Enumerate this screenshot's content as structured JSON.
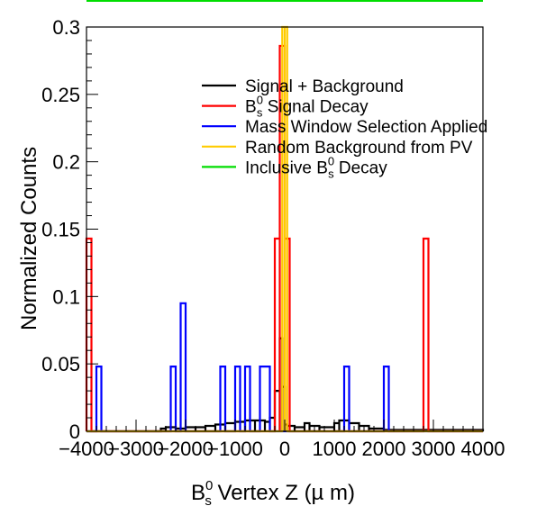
{
  "chart_data": {
    "type": "histogram-step",
    "xlabel": "B_s^0 Vertex Z (μ m)",
    "xlabel_parts": {
      "main": "B",
      "sub": "s",
      "sup": "0",
      "rest": " Vertex Z (µ m)"
    },
    "ylabel": "Normalized Counts",
    "xlim": [
      -4000,
      4000
    ],
    "ylim": [
      0,
      0.3
    ],
    "bin_width": 100,
    "x_ticks": [
      -4000,
      -3000,
      -2000,
      -1000,
      0,
      1000,
      2000,
      3000,
      4000
    ],
    "x_tick_labels": [
      "−4000",
      "−3000",
      "−2000",
      "−1000",
      "0",
      "1000",
      "2000",
      "3000",
      "4000"
    ],
    "y_ticks": [
      0,
      0.05,
      0.1,
      0.15,
      0.2,
      0.25,
      0.3
    ],
    "y_tick_labels": [
      "0",
      "0.05",
      "0.1",
      "0.15",
      "0.2",
      "0.25",
      "0.3"
    ],
    "legend_position": "top-right",
    "series": [
      {
        "name": "Signal + Background",
        "legend": {
          "pre": "Signal + Background",
          "sub": "",
          "sup": "",
          "post": ""
        },
        "color": "#000000",
        "bins": [
          [
            -2500,
            -2400,
            0.002
          ],
          [
            -2400,
            -2200,
            0.003
          ],
          [
            -2200,
            -2000,
            0.002
          ],
          [
            -2000,
            -1800,
            0.003
          ],
          [
            -1800,
            -1600,
            0.003
          ],
          [
            -1600,
            -1400,
            0.004
          ],
          [
            -1400,
            -1200,
            0.005
          ],
          [
            -1200,
            -1000,
            0.006
          ],
          [
            -1000,
            -800,
            0.007
          ],
          [
            -800,
            -600,
            0.008
          ],
          [
            -600,
            -400,
            0.008
          ],
          [
            -400,
            -300,
            0.007
          ],
          [
            -300,
            -200,
            0.01
          ],
          [
            -200,
            -100,
            0.03
          ],
          [
            -100,
            -50,
            0.069
          ],
          [
            -50,
            0,
            0.033
          ],
          [
            0,
            50,
            0.005
          ],
          [
            50,
            200,
            0.004
          ],
          [
            200,
            400,
            0.003
          ],
          [
            400,
            500,
            0.006
          ],
          [
            500,
            700,
            0.004
          ],
          [
            700,
            1000,
            0.003
          ],
          [
            1000,
            1100,
            0.006
          ],
          [
            1100,
            1300,
            0.008
          ],
          [
            1300,
            1500,
            0.006
          ],
          [
            1500,
            1700,
            0.004
          ],
          [
            1700,
            2000,
            0.002
          ],
          [
            2000,
            2500,
            0.001
          ],
          [
            2500,
            3500,
            0.001
          ],
          [
            3500,
            4000,
            0.001
          ]
        ]
      },
      {
        "name": "B_s^0 Signal Decay",
        "legend": {
          "pre": "B",
          "sub": "s",
          "sup": "0",
          "post": " Signal Decay"
        },
        "color": "#ff0000",
        "bins": [
          [
            -4000,
            -3900,
            0.143
          ],
          [
            -200,
            -100,
            0.143
          ],
          [
            -100,
            0,
            0.286
          ],
          [
            0,
            100,
            0.143
          ],
          [
            2800,
            2900,
            0.143
          ]
        ]
      },
      {
        "name": "Mass Window Selection Applied",
        "legend": {
          "pre": "Mass Window Selection Applied",
          "sub": "",
          "sup": "",
          "post": ""
        },
        "color": "#0000ff",
        "bins": [
          [
            -3800,
            -3700,
            0.048
          ],
          [
            -2300,
            -2200,
            0.048
          ],
          [
            -2100,
            -2000,
            0.095
          ],
          [
            -1300,
            -1200,
            0.048
          ],
          [
            -1000,
            -900,
            0.048
          ],
          [
            -800,
            -700,
            0.048
          ],
          [
            -500,
            -300,
            0.048
          ],
          [
            1200,
            1300,
            0.048
          ],
          [
            2000,
            2100,
            0.048
          ]
        ]
      },
      {
        "name": "Random Background from PV",
        "legend": {
          "pre": "Random Background from PV",
          "sub": "",
          "sup": "",
          "post": ""
        },
        "color": "#ffcc00",
        "bins": [
          [
            -50,
            0,
            0.3
          ],
          [
            0,
            50,
            0.3
          ]
        ]
      },
      {
        "name": "Inclusive B_s^0 Decay",
        "legend": {
          "pre": "Inclusive B",
          "sub": "s",
          "sup": "0",
          "post": " Decay"
        },
        "color": "#00dd00",
        "bins": []
      }
    ]
  }
}
